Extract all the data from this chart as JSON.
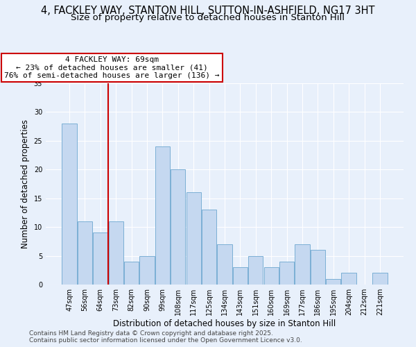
{
  "title": "4, FACKLEY WAY, STANTON HILL, SUTTON-IN-ASHFIELD, NG17 3HT",
  "subtitle": "Size of property relative to detached houses in Stanton Hill",
  "xlabel": "Distribution of detached houses by size in Stanton Hill",
  "ylabel": "Number of detached properties",
  "categories": [
    "47sqm",
    "56sqm",
    "64sqm",
    "73sqm",
    "82sqm",
    "90sqm",
    "99sqm",
    "108sqm",
    "117sqm",
    "125sqm",
    "134sqm",
    "143sqm",
    "151sqm",
    "160sqm",
    "169sqm",
    "177sqm",
    "186sqm",
    "195sqm",
    "204sqm",
    "212sqm",
    "221sqm"
  ],
  "values": [
    28,
    11,
    9,
    11,
    4,
    5,
    24,
    20,
    16,
    13,
    7,
    3,
    5,
    3,
    4,
    7,
    6,
    1,
    2,
    0,
    2
  ],
  "bar_color": "#c5d8f0",
  "bar_edge_color": "#7bafd4",
  "vline_x_index": 2.5,
  "vline_color": "#cc0000",
  "annotation_text": "4 FACKLEY WAY: 69sqm\n← 23% of detached houses are smaller (41)\n76% of semi-detached houses are larger (136) →",
  "annotation_box_color": "#ffffff",
  "annotation_box_edge_color": "#cc0000",
  "bg_color": "#e8f0fb",
  "plot_bg_color": "#e8f0fb",
  "grid_color": "#ffffff",
  "ylim": [
    0,
    35
  ],
  "yticks": [
    0,
    5,
    10,
    15,
    20,
    25,
    30,
    35
  ],
  "footer": "Contains HM Land Registry data © Crown copyright and database right 2025.\nContains public sector information licensed under the Open Government Licence v3.0.",
  "title_fontsize": 10.5,
  "subtitle_fontsize": 9.5,
  "axis_label_fontsize": 8.5,
  "tick_fontsize": 7,
  "annotation_fontsize": 8,
  "footer_fontsize": 6.5
}
